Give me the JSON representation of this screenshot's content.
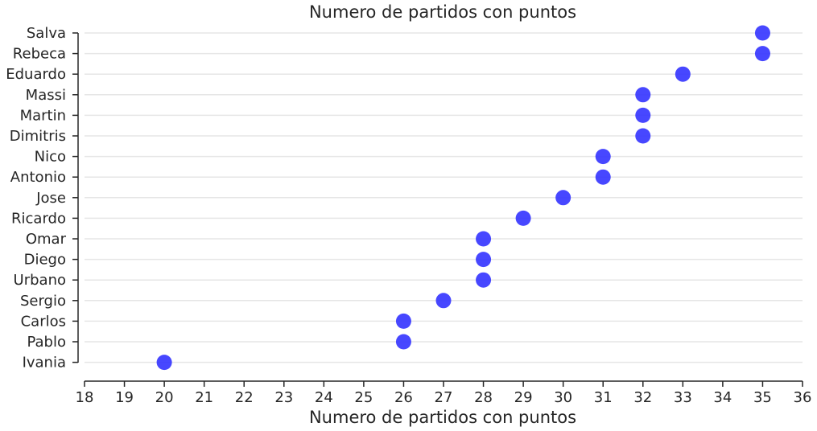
{
  "chart_data": {
    "type": "scatter",
    "title": "Numero de partidos con puntos",
    "xlabel": "Numero de partidos con puntos",
    "ylabel": "",
    "xlim": [
      18,
      36
    ],
    "xticks": [
      "18",
      "19",
      "20",
      "21",
      "22",
      "23",
      "24",
      "25",
      "26",
      "27",
      "28",
      "29",
      "30",
      "31",
      "32",
      "33",
      "34",
      "35",
      "36"
    ],
    "categories": [
      "Salva",
      "Rebeca",
      "Eduardo",
      "Massi",
      "Martin",
      "Dimitris",
      "Nico",
      "Antonio",
      "Jose",
      "Ricardo",
      "Omar",
      "Diego",
      "Urbano",
      "Sergio",
      "Carlos",
      "Pablo",
      "Ivania"
    ],
    "values": [
      35,
      35,
      33,
      32,
      32,
      32,
      31,
      31,
      30,
      29,
      28,
      28,
      28,
      27,
      26,
      26,
      20
    ],
    "marker_color": "#3333ff",
    "grid": "horizontal"
  }
}
